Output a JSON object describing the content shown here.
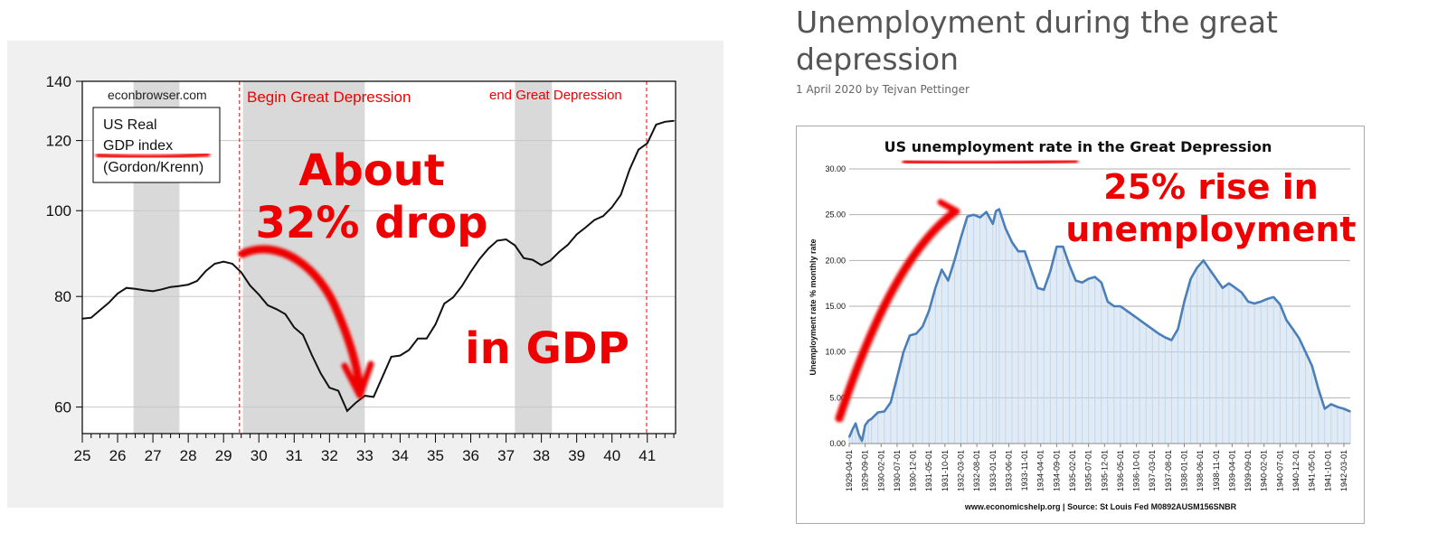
{
  "article": {
    "title": "Unemployment during the great depression",
    "byline": "1 April 2020 by Tejvan Pettinger"
  },
  "chart_data": [
    {
      "type": "line",
      "watermark": "econbrowser.com",
      "legend_lines": [
        "US Real",
        "GDP index",
        "(Gordon/Krenn)"
      ],
      "x_ticks": [
        "25",
        "26",
        "27",
        "28",
        "29",
        "30",
        "31",
        "32",
        "33",
        "34",
        "35",
        "36",
        "37",
        "38",
        "39",
        "40",
        "41"
      ],
      "y_ticks": [
        60,
        80,
        100,
        120,
        140
      ],
      "yscale": "log",
      "xlim": [
        1925,
        1941.8
      ],
      "ylim": [
        56,
        140
      ],
      "x": [
        1925.0,
        1925.25,
        1925.5,
        1925.75,
        1926.0,
        1926.25,
        1926.5,
        1926.75,
        1927.0,
        1927.25,
        1927.5,
        1927.75,
        1928.0,
        1928.25,
        1928.5,
        1928.75,
        1929.0,
        1929.25,
        1929.5,
        1929.75,
        1930.0,
        1930.25,
        1930.5,
        1930.75,
        1931.0,
        1931.25,
        1931.5,
        1931.75,
        1932.0,
        1932.25,
        1932.5,
        1932.75,
        1933.0,
        1933.25,
        1933.5,
        1933.75,
        1934.0,
        1934.25,
        1934.5,
        1934.75,
        1935.0,
        1935.25,
        1935.5,
        1935.75,
        1936.0,
        1936.25,
        1936.5,
        1936.75,
        1937.0,
        1937.25,
        1937.5,
        1937.75,
        1938.0,
        1938.25,
        1938.5,
        1938.75,
        1939.0,
        1939.25,
        1939.5,
        1939.75,
        1940.0,
        1940.25,
        1940.5,
        1940.75,
        1941.0,
        1941.25,
        1941.5,
        1941.75
      ],
      "y": [
        75.5,
        75.7,
        77.2,
        78.7,
        80.6,
        81.8,
        81.6,
        81.3,
        81.1,
        81.5,
        82.0,
        82.2,
        82.5,
        83.3,
        85.5,
        87.1,
        87.6,
        87.1,
        85.2,
        82.3,
        80.4,
        78.2,
        77.4,
        76.4,
        73.8,
        72.4,
        68.7,
        65.5,
        63.1,
        62.6,
        59.4,
        60.7,
        61.8,
        61.6,
        64.9,
        68.4,
        68.6,
        69.6,
        71.7,
        71.7,
        74.4,
        78.5,
        79.8,
        82.2,
        85.3,
        88.2,
        90.6,
        92.5,
        92.8,
        91.4,
        88.4,
        88.0,
        86.8,
        87.8,
        89.8,
        91.5,
        94.0,
        95.7,
        97.6,
        98.6,
        100.9,
        104.2,
        111.3,
        117.2,
        119.2,
        125.1,
        126.0,
        126.3
      ],
      "recession_shading": [
        [
          1926.45,
          1927.75
        ],
        [
          1929.55,
          1933.0
        ],
        [
          1937.25,
          1938.3
        ]
      ],
      "annotations": [
        "Begin Great Depression",
        "end Great Depression",
        "About",
        "32% drop",
        "in GDP"
      ],
      "marker_lines_x": [
        1929.45,
        1940.98
      ],
      "colors": {
        "line": "#111111",
        "shading": "#d9d9d9",
        "annotation": "#ee0000",
        "marker_line": "#e03030"
      }
    },
    {
      "type": "area",
      "title": "US unemployment rate in the Great Depression",
      "ylabel": "Unemployment rate % monthly rate",
      "source": "www.economicshelp.org | Source: St Louis Fed M0892AUSM156SNBR",
      "ylim": [
        0,
        30
      ],
      "y_ticks": [
        "0.00",
        "5.00",
        "10.00",
        "15.00",
        "20.00",
        "25.00",
        "30.00"
      ],
      "x_tick_labels": [
        "1929-04-01",
        "1929-09-01",
        "1930-02-01",
        "1930-07-01",
        "1930-12-01",
        "1931-05-01",
        "1931-10-01",
        "1932-03-01",
        "1932-08-01",
        "1933-01-01",
        "1933-06-01",
        "1933-11-01",
        "1934-04-01",
        "1934-09-01",
        "1935-02-01",
        "1935-07-01",
        "1935-12-01",
        "1936-05-01",
        "1936-10-01",
        "1937-03-01",
        "1937-08-01",
        "1938-01-01",
        "1938-06-01",
        "1938-11-01",
        "1939-04-01",
        "1939-09-01",
        "1940-02-01",
        "1940-07-01",
        "1940-12-01",
        "1941-05-01",
        "1941-10-01",
        "1942-03-01"
      ],
      "x": [
        "1929-04",
        "1929-05",
        "1929-06",
        "1929-07",
        "1929-08",
        "1929-09",
        "1929-10",
        "1929-11",
        "1930-01",
        "1930-03",
        "1930-05",
        "1930-07",
        "1930-09",
        "1930-11",
        "1931-01",
        "1931-03",
        "1931-05",
        "1931-07",
        "1931-09",
        "1931-11",
        "1932-01",
        "1932-03",
        "1932-05",
        "1932-07",
        "1932-09",
        "1932-11",
        "1933-01",
        "1933-02",
        "1933-03",
        "1933-05",
        "1933-07",
        "1933-09",
        "1933-11",
        "1934-01",
        "1934-03",
        "1934-05",
        "1934-07",
        "1934-09",
        "1934-11",
        "1935-01",
        "1935-03",
        "1935-05",
        "1935-07",
        "1935-09",
        "1935-11",
        "1936-01",
        "1936-03",
        "1936-05",
        "1936-07",
        "1936-09",
        "1936-11",
        "1937-01",
        "1937-03",
        "1937-05",
        "1937-07",
        "1937-09",
        "1937-11",
        "1938-01",
        "1938-03",
        "1938-05",
        "1938-07",
        "1938-09",
        "1938-11",
        "1939-01",
        "1939-03",
        "1939-05",
        "1939-07",
        "1939-09",
        "1939-11",
        "1940-01",
        "1940-03",
        "1940-05",
        "1940-07",
        "1940-09",
        "1940-11",
        "1941-01",
        "1941-03",
        "1941-05",
        "1941-07",
        "1941-09",
        "1941-11",
        "1942-01",
        "1942-03",
        "1942-05"
      ],
      "values": [
        0.7,
        1.5,
        2.2,
        1.0,
        0.3,
        2.0,
        2.5,
        2.7,
        3.4,
        3.5,
        4.5,
        7.2,
        10.0,
        11.8,
        12.0,
        12.8,
        14.5,
        17.0,
        19.0,
        17.8,
        20.0,
        22.5,
        24.8,
        25.0,
        24.7,
        25.3,
        24.0,
        25.4,
        25.6,
        23.5,
        22.0,
        21.0,
        21.0,
        19.0,
        17.0,
        16.8,
        18.8,
        21.5,
        21.5,
        19.5,
        17.8,
        17.6,
        18.0,
        18.2,
        17.6,
        15.5,
        15.0,
        15.0,
        14.5,
        14.0,
        13.5,
        13.0,
        12.5,
        12.0,
        11.6,
        11.3,
        12.5,
        15.5,
        18.0,
        19.2,
        20.0,
        19.0,
        18.0,
        17.0,
        17.5,
        17.0,
        16.5,
        15.5,
        15.3,
        15.5,
        15.8,
        16.0,
        15.2,
        13.5,
        12.5,
        11.5,
        10.0,
        8.5,
        6.0,
        3.8,
        4.3,
        4.0,
        3.8,
        3.5
      ],
      "annotations": [
        "25% rise in",
        "unemployment"
      ],
      "colors": {
        "line": "#4a7fba",
        "area": "#c9daee",
        "annotation": "#ee0000",
        "grid": "#b0b0b0"
      }
    }
  ]
}
